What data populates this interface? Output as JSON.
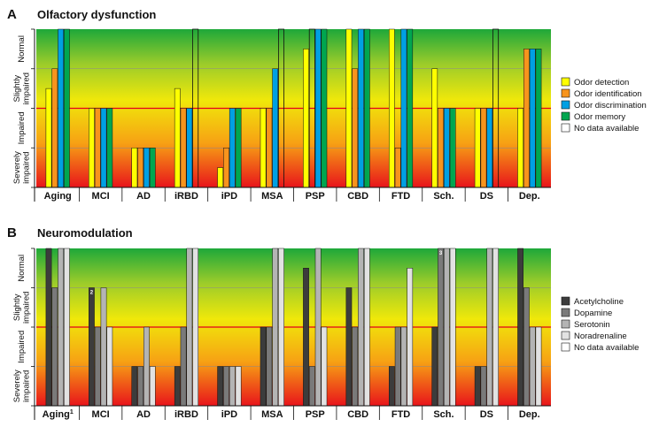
{
  "chart_data": [
    {
      "type": "bar",
      "panel_letter": "A",
      "title": "Olfactory dysfunction",
      "levels": [
        "Severely impaired",
        "Impaired",
        "Slightly impaired",
        "Normal"
      ],
      "ylim": [
        0,
        4
      ],
      "categories": [
        "Aging",
        "MCI",
        "AD",
        "iRBD",
        "iPD",
        "MSA",
        "PSP",
        "CBD",
        "FTD",
        "Sch.",
        "DS",
        "Dep."
      ],
      "series": [
        {
          "name": "Odor detection",
          "color": "#ffff00",
          "values": [
            2.5,
            2,
            1,
            2.5,
            0.5,
            2,
            3.5,
            4,
            4,
            3,
            2,
            2
          ]
        },
        {
          "name": "Odor identification",
          "color": "#f7941d",
          "values": [
            3,
            2,
            1,
            2,
            1,
            2,
            null,
            3,
            1,
            2,
            2,
            3.5
          ]
        },
        {
          "name": "Odor discrimination",
          "color": "#00a0e3",
          "values": [
            4,
            2,
            1,
            2,
            2,
            3,
            4,
            4,
            4,
            2,
            2,
            3.5
          ]
        },
        {
          "name": "Odor memory",
          "color": "#00a650",
          "values": [
            4,
            2,
            1,
            null,
            2,
            null,
            4,
            4,
            4,
            2,
            null,
            3.5
          ]
        },
        {
          "name": "No data available",
          "color": "#ffffff",
          "values": [
            null,
            null,
            null,
            4,
            null,
            4,
            null,
            null,
            null,
            null,
            null,
            null
          ]
        }
      ],
      "annotations": []
    },
    {
      "type": "bar",
      "panel_letter": "B",
      "title": "Neuromodulation",
      "levels": [
        "Severely impaired",
        "Impaired",
        "Slightly impaired",
        "Normal"
      ],
      "ylim": [
        0,
        4
      ],
      "categories": [
        "Aging",
        "MCI",
        "AD",
        "iRBD",
        "iPD",
        "MSA",
        "PSP",
        "CBD",
        "FTD",
        "Sch.",
        "DS",
        "Dep."
      ],
      "category_superscripts": [
        "1",
        "",
        "",
        "",
        "",
        "",
        "",
        "",
        "",
        "",
        "",
        ""
      ],
      "series": [
        {
          "name": "Acetylcholine",
          "color": "#3c3c3c",
          "values": [
            4,
            3,
            1,
            1,
            1,
            2,
            3.5,
            3,
            1,
            2,
            1,
            4
          ]
        },
        {
          "name": "Dopamine",
          "color": "#7a7a7a",
          "values": [
            3,
            2,
            1,
            2,
            1,
            2,
            1,
            2,
            2,
            4,
            1,
            3
          ]
        },
        {
          "name": "Serotonin",
          "color": "#b4b4b4",
          "values": [
            4,
            3,
            2,
            4,
            1,
            4,
            4,
            4,
            2,
            4,
            4,
            2
          ]
        },
        {
          "name": "Noradrenaline",
          "color": "#e2e2e2",
          "values": [
            4,
            2,
            1,
            4,
            1,
            4,
            2,
            4,
            3.5,
            4,
            4,
            2
          ]
        },
        {
          "name": "No data available",
          "color": "#ffffff",
          "values": [
            null,
            null,
            null,
            null,
            null,
            null,
            null,
            null,
            null,
            null,
            null,
            null
          ]
        }
      ],
      "annotations": [
        {
          "category": "MCI",
          "series": "Acetylcholine",
          "text": "2"
        },
        {
          "category": "Sch.",
          "series": "Dopamine",
          "text": "3"
        }
      ]
    }
  ]
}
